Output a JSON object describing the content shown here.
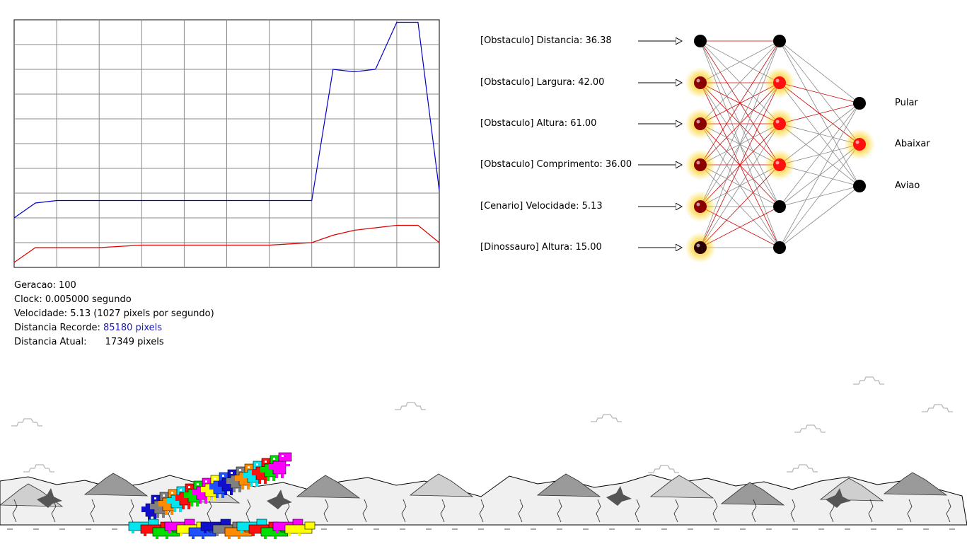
{
  "chart_data": {
    "type": "line",
    "title": "",
    "xlabel": "",
    "ylabel": "",
    "grid": true,
    "x": [
      0,
      5,
      10,
      20,
      30,
      40,
      50,
      60,
      70,
      75,
      80,
      85,
      90,
      95,
      100
    ],
    "series": [
      {
        "color": "#0000cc",
        "values": [
          0.2,
          0.26,
          0.27,
          0.27,
          0.27,
          0.27,
          0.27,
          0.27,
          0.27,
          0.8,
          0.79,
          0.8,
          0.99,
          0.99,
          0.31
        ]
      },
      {
        "color": "#dd0000",
        "values": [
          0.02,
          0.08,
          0.08,
          0.08,
          0.09,
          0.09,
          0.09,
          0.09,
          0.1,
          0.13,
          0.15,
          0.16,
          0.17,
          0.17,
          0.1
        ]
      }
    ],
    "ylim": [
      0,
      1
    ]
  },
  "stats": {
    "geracao_label": "Geracao:",
    "geracao_value": "100",
    "clock_label": "Clock:",
    "clock_value": "0.005000 segundo",
    "velocidade_label": "Velocidade:",
    "velocidade_value": "5.13 (1027 pixels por segundo)",
    "recorde_label": "Distancia Recorde:",
    "recorde_value": "85180 pixels",
    "atual_label": "Distancia Atual:",
    "atual_value": "17349 pixels"
  },
  "network": {
    "inputs": [
      {
        "label": "[Obstaculo] Distancia: 36.38",
        "active": false
      },
      {
        "label": "[Obstaculo] Largura: 42.00",
        "active": true
      },
      {
        "label": "[Obstaculo] Altura: 61.00",
        "active": true
      },
      {
        "label": "[Obstaculo] Comprimento: 36.00",
        "active": true
      },
      {
        "label": "[Cenario] Velocidade: 5.13",
        "active": true
      },
      {
        "label": "[Dinossauro] Altura: 15.00",
        "active": true
      }
    ],
    "hidden_active": [
      false,
      true,
      true,
      true,
      false,
      false
    ],
    "outputs": [
      {
        "label": "Pular",
        "active": false
      },
      {
        "label": "Abaixar",
        "active": true
      },
      {
        "label": "Aviao",
        "active": false
      }
    ],
    "colors": {
      "active": "#ff1010",
      "dim": "#8b0000",
      "off": "#000000",
      "edge_pos": "#cc0000",
      "edge_neg": "#888888"
    }
  },
  "scene": {
    "dino_colors": [
      "#1010cc",
      "#808080",
      "#ff8c00",
      "#00e5ee",
      "#ff1010",
      "#00dd00",
      "#ff00ff",
      "#ffff00",
      "#2050ff"
    ]
  }
}
